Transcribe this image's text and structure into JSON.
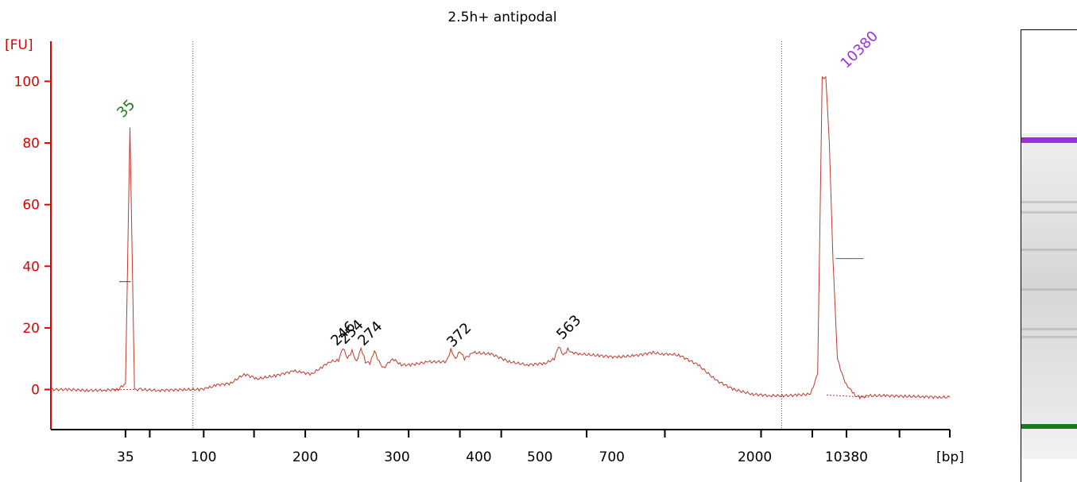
{
  "chart_data": {
    "type": "line",
    "title": "2.5h+ antipodal",
    "ylabel": "[FU]",
    "xlabel": "[bp]",
    "ylim": [
      -13,
      113
    ],
    "yticks": [
      0,
      20,
      40,
      60,
      80,
      100
    ],
    "xticks_labeled": [
      "35",
      "100",
      "200",
      "300",
      "400",
      "500",
      "700",
      "2000",
      "10380"
    ],
    "trace_color": "#c0392b",
    "axis_color": "#e00000",
    "ladder_peak_labels": [
      {
        "label": "35",
        "color": "#1a7a1a",
        "height": 85
      },
      {
        "label": "10380",
        "color": "#9b30e0",
        "height": 102
      }
    ],
    "sample_peak_labels": [
      "246",
      "254",
      "274",
      "372",
      "563"
    ],
    "series": [
      {
        "x": [
          0,
          0.02,
          0.04,
          0.06,
          0.075,
          0.083,
          0.088,
          0.093,
          0.1,
          0.12,
          0.15,
          0.165,
          0.175,
          0.185,
          0.2,
          0.215,
          0.23,
          0.25,
          0.27,
          0.28,
          0.29,
          0.3,
          0.31,
          0.32,
          0.325,
          0.33,
          0.335,
          0.34,
          0.345,
          0.35,
          0.355,
          0.36,
          0.365,
          0.37,
          0.38,
          0.39,
          0.4,
          0.42,
          0.44,
          0.445,
          0.45,
          0.455,
          0.46,
          0.47,
          0.49,
          0.51,
          0.53,
          0.55,
          0.56,
          0.565,
          0.57,
          0.575,
          0.58,
          0.59,
          0.61,
          0.63,
          0.65,
          0.67,
          0.68,
          0.69,
          0.7,
          0.72,
          0.74,
          0.76,
          0.78,
          0.8,
          0.815,
          0.83,
          0.845,
          0.853,
          0.858,
          0.862,
          0.866,
          0.87,
          0.875,
          0.88,
          0.885,
          0.89,
          0.895,
          0.9,
          0.91,
          0.93,
          0.95,
          0.97,
          0.99,
          1.0
        ],
        "y": [
          0,
          0,
          -0.3,
          -0.2,
          0,
          2,
          85,
          0,
          0,
          -0.3,
          0,
          0,
          0.5,
          1.5,
          2,
          5,
          3.5,
          4.5,
          6,
          5.5,
          5,
          7,
          9,
          9.5,
          13.5,
          10,
          12.5,
          9,
          13.5,
          9,
          8.5,
          12.5,
          9,
          7,
          10,
          8,
          8,
          9,
          9,
          13,
          10,
          12.5,
          10,
          12,
          11.5,
          9,
          8,
          8.5,
          10,
          14,
          11,
          13,
          12,
          11.5,
          11,
          10.5,
          11,
          12,
          11.5,
          11.5,
          11,
          8,
          3,
          0,
          -1.5,
          -2,
          -2,
          -1.8,
          -1.5,
          5,
          101,
          101.5,
          80,
          42,
          10,
          5,
          1.5,
          0,
          -2,
          -2.5,
          -2,
          -2,
          -2.2,
          -2.3,
          -2.5,
          -2.5
        ]
      }
    ],
    "gel": {
      "upper_marker_color": "#9b30e0",
      "lower_marker_color": "#1a7a1a"
    }
  }
}
